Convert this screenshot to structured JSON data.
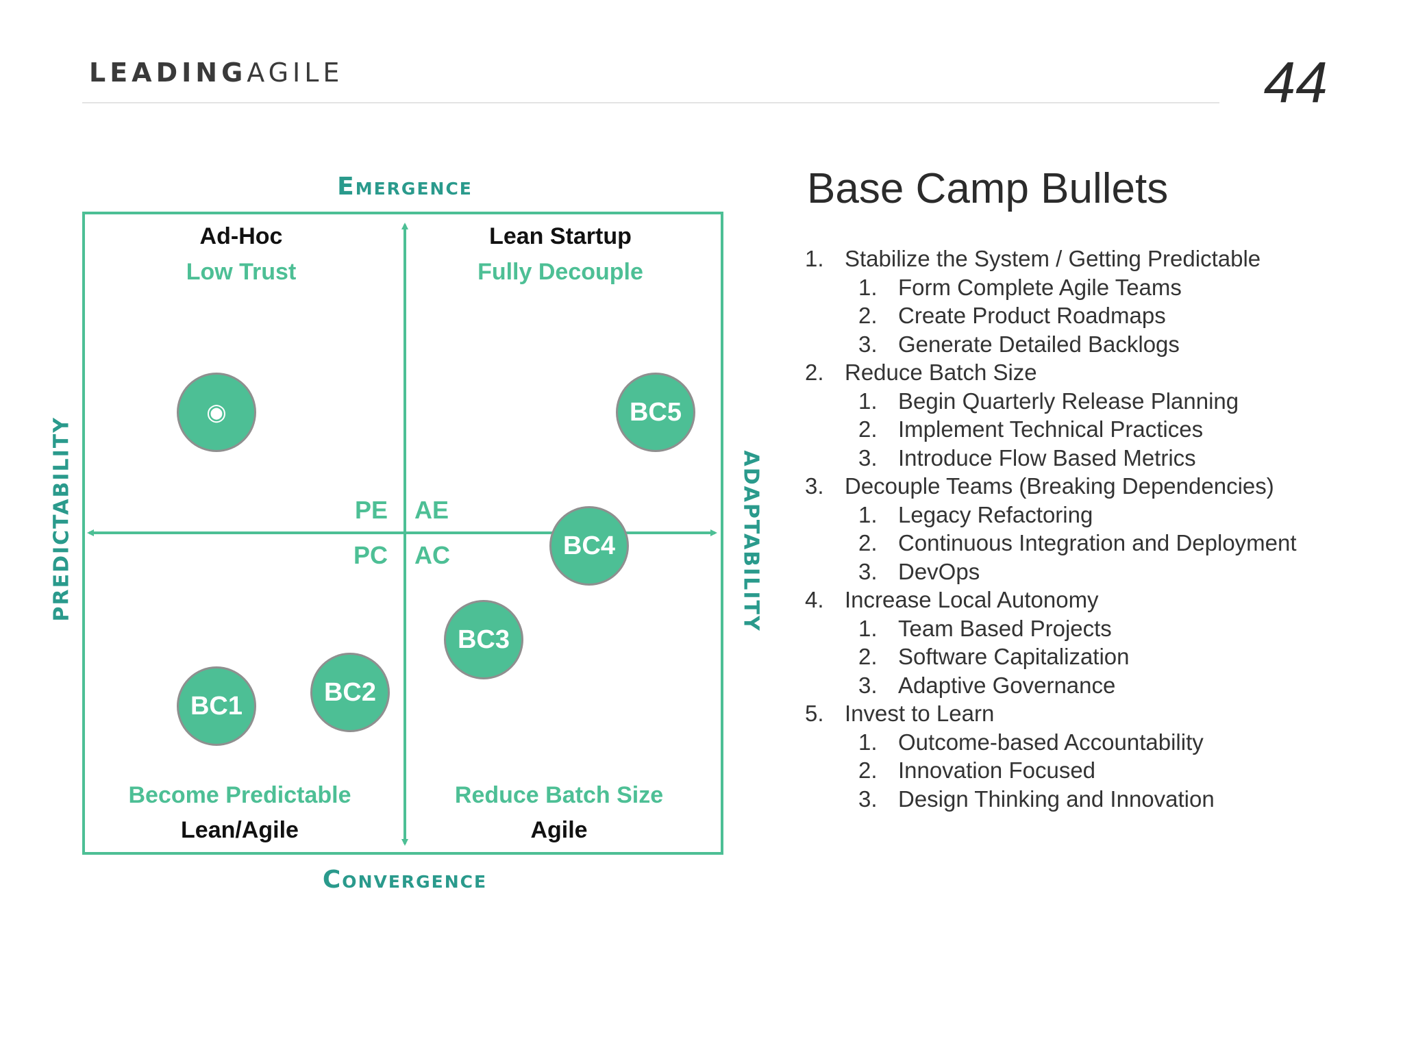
{
  "header": {
    "brand_bold": "LEADING",
    "brand_light": "AGILE",
    "page_number": "44"
  },
  "diagram": {
    "top_label": "Emergence",
    "bottom_label": "Convergence",
    "left_label": "PREDICTABILITY",
    "right_label": "ADAPTABILITY",
    "quadrants": {
      "top_left": {
        "name": "Ad-Hoc",
        "goal": "Low Trust"
      },
      "top_right": {
        "name": "Lean Startup",
        "goal": "Fully Decouple"
      },
      "bottom_left": {
        "name": "Lean/Agile",
        "goal": "Become Predictable"
      },
      "bottom_right": {
        "name": "Agile",
        "goal": "Reduce Batch Size"
      }
    },
    "center_codes": {
      "pe": "PE",
      "ae": "AE",
      "pc": "PC",
      "ac": "AC"
    },
    "base_camps": {
      "start": "◉",
      "bc1": "BC1",
      "bc2": "BC2",
      "bc3": "BC3",
      "bc4": "BC4",
      "bc5": "BC5"
    },
    "colors": {
      "frame": "#4dbf95",
      "axis_title": "#2a9a8c",
      "circle_fill": "#4dbf95",
      "circle_border": "#8f8f8f"
    }
  },
  "panel": {
    "title": "Base Camp Bullets",
    "items": [
      {
        "num": "1.",
        "text": "Stabilize the System / Getting Predictable",
        "sub": [
          {
            "num": "1.",
            "text": "Form Complete Agile Teams"
          },
          {
            "num": "2.",
            "text": "Create Product Roadmaps"
          },
          {
            "num": "3.",
            "text": "Generate Detailed Backlogs"
          }
        ]
      },
      {
        "num": "2.",
        "text": "Reduce Batch Size",
        "sub": [
          {
            "num": "1.",
            "text": "Begin Quarterly Release Planning"
          },
          {
            "num": "2.",
            "text": "Implement Technical Practices"
          },
          {
            "num": "3.",
            "text": "Introduce Flow Based Metrics"
          }
        ]
      },
      {
        "num": "3.",
        "text": "Decouple Teams (Breaking Dependencies)",
        "sub": [
          {
            "num": "1.",
            "text": "Legacy Refactoring"
          },
          {
            "num": "2.",
            "text": "Continuous Integration and Deployment"
          },
          {
            "num": "3.",
            "text": "DevOps"
          }
        ]
      },
      {
        "num": "4.",
        "text": "Increase Local Autonomy",
        "sub": [
          {
            "num": "1.",
            "text": "Team Based Projects"
          },
          {
            "num": "2.",
            "text": "Software Capitalization"
          },
          {
            "num": "3.",
            "text": "Adaptive Governance"
          }
        ]
      },
      {
        "num": "5.",
        "text": "Invest to Learn",
        "sub": [
          {
            "num": "1.",
            "text": "Outcome-based Accountability"
          },
          {
            "num": "2.",
            "text": "Innovation Focused"
          },
          {
            "num": "3.",
            "text": "Design Thinking and Innovation"
          }
        ]
      }
    ]
  }
}
